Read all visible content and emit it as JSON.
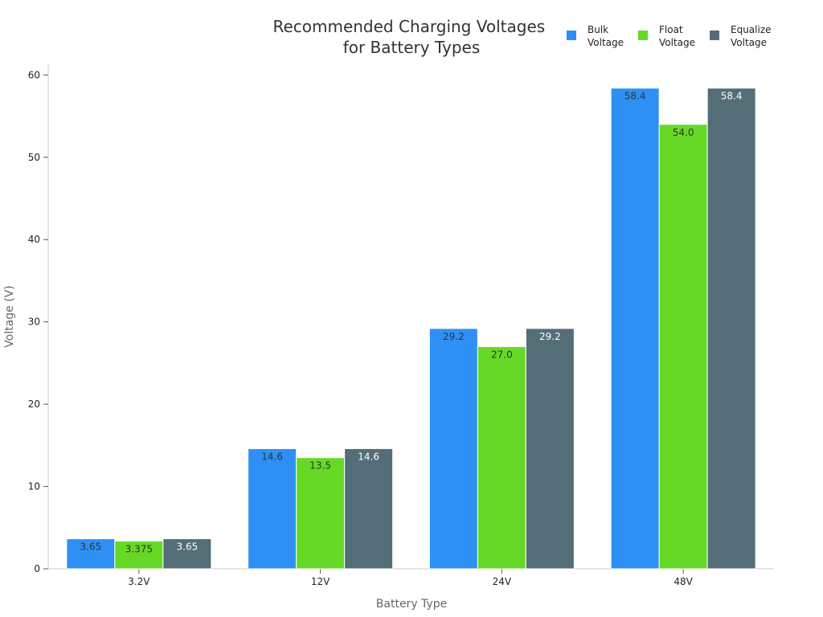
{
  "chart_data": {
    "type": "bar",
    "title": [
      "Recommended Charging Voltages",
      "for Battery Types"
    ],
    "xlabel": "Battery Type",
    "ylabel": "Voltage (V)",
    "categories": [
      "3.2V",
      "12V",
      "24V",
      "48V"
    ],
    "ylim": [
      0,
      61.3
    ],
    "yticks": [
      0,
      10,
      20,
      30,
      40,
      50,
      60
    ],
    "grid": false,
    "legend_position": "top-right",
    "series": [
      {
        "name": [
          "Bulk",
          "Voltage"
        ],
        "color": "#2e90f5",
        "label_color": "#333333",
        "values": [
          3.65,
          14.6,
          29.2,
          58.4
        ],
        "labels": [
          "3.65",
          "14.6",
          "29.2",
          "58.4"
        ]
      },
      {
        "name": [
          "Float",
          "Voltage"
        ],
        "color": "#66d926",
        "label_color": "#333333",
        "values": [
          3.375,
          13.5,
          27.0,
          54.0
        ],
        "labels": [
          "3.375",
          "13.5",
          "27.0",
          "54.0"
        ]
      },
      {
        "name": [
          "Equalize",
          "Voltage"
        ],
        "color": "#546e77",
        "label_color": "#ffffff",
        "values": [
          3.65,
          14.6,
          29.2,
          58.4
        ],
        "labels": [
          "3.65",
          "14.6",
          "29.2",
          "58.4"
        ]
      }
    ]
  }
}
